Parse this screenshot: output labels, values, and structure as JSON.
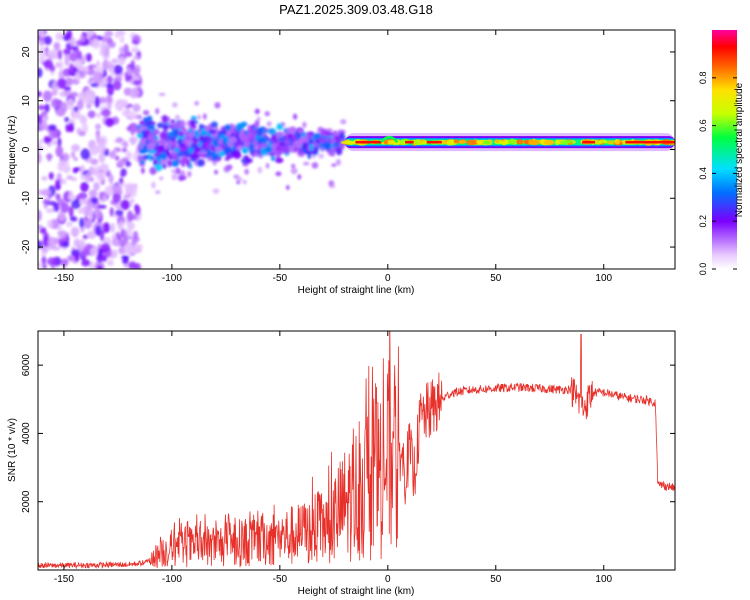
{
  "title": "PAZ1.2025.309.03.48.G18",
  "chart_data": [
    {
      "type": "heatmap",
      "xlabel": "Height of straight line (km)",
      "ylabel": "Frequency (Hz)",
      "xlim": [
        -162,
        133
      ],
      "ylim": [
        -24.5,
        24.5
      ],
      "xticks": [
        -150,
        -100,
        -50,
        0,
        50,
        100
      ],
      "yticks": [
        -20,
        -10,
        0,
        10,
        20
      ],
      "colorbar": {
        "label": "Normalized spectral amplitude",
        "range": [
          0,
          1
        ],
        "ticks": [
          0.0,
          0.2,
          0.4,
          0.6,
          0.8
        ]
      },
      "features": [
        {
          "region": "x < -115 km",
          "description": "scattered weak noise across full frequency range"
        },
        {
          "region": "-115 to -20 km",
          "description": "dense multipath band, approx -8 to +8 Hz"
        },
        {
          "region": "-20 to 133 km",
          "description": "single narrow line near +1.5 Hz, max amplitude ~1.0"
        }
      ]
    },
    {
      "type": "line",
      "xlabel": "Height of straight line (km)",
      "ylabel": "SNR (10 * v/v)",
      "xlim": [
        -162,
        133
      ],
      "ylim": [
        0,
        7000
      ],
      "xticks": [
        -150,
        -100,
        -50,
        0,
        50,
        100
      ],
      "yticks": [
        2000,
        4000,
        6000
      ],
      "series": [
        {
          "name": "SNR",
          "color": "#e8302a",
          "x": [
            -162,
            -140,
            -120,
            -112,
            -105,
            -100,
            -90,
            -80,
            -70,
            -60,
            -50,
            -40,
            -30,
            -25,
            -20,
            -15,
            -10,
            -5,
            0,
            3,
            6,
            8,
            10,
            12,
            15,
            20,
            25,
            30,
            40,
            50,
            60,
            70,
            80,
            85,
            88,
            90,
            92,
            95,
            100,
            110,
            120,
            124,
            125,
            126,
            130,
            133
          ],
          "values": [
            130,
            140,
            160,
            220,
            500,
            650,
            700,
            720,
            780,
            880,
            950,
            1050,
            1250,
            1500,
            1900,
            2200,
            2500,
            2750,
            3250,
            3400,
            3500,
            2800,
            3550,
            2700,
            4400,
            4700,
            5000,
            5200,
            5280,
            5320,
            5350,
            5320,
            5280,
            5300,
            5000,
            4700,
            4900,
            5200,
            5200,
            5050,
            4970,
            4900,
            2500,
            2500,
            2450,
            2400
          ]
        }
      ]
    }
  ]
}
